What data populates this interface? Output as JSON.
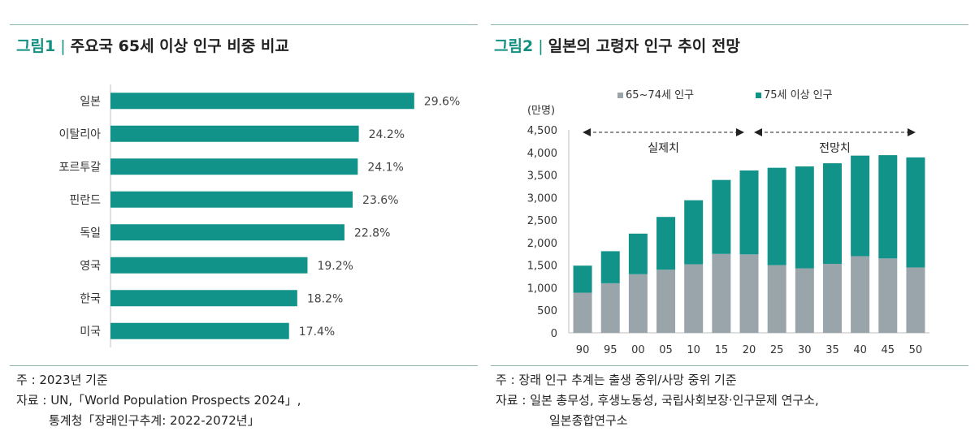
{
  "colors": {
    "teal": "#12938a",
    "gray": "#9aa4ab",
    "accent": "#129082"
  },
  "left": {
    "fig_label": "그림1",
    "sep": "|",
    "title": "주요국 65세 이상 인구 비중 비교",
    "notes": {
      "basis": "주 : 2023년 기준",
      "source1": "자료 : UN,「World Population Prospects 2024」,",
      "source2": "통계청「장래인구추계: 2022-2072년」"
    }
  },
  "right": {
    "fig_label": "그림2",
    "sep": "|",
    "title": "일본의 고령자 인구 추이 전망",
    "notes": {
      "basis": "주 : 장래 인구 추계는 출생 중위/사망 중위 기준",
      "source1": "자료 : 일본 총무성, 후생노동성, 국립사회보장·인구문제 연구소,",
      "source2": "일본종합연구소"
    }
  },
  "chart_data": [
    {
      "type": "bar",
      "orientation": "horizontal",
      "title": "주요국 65세 이상 인구 비중 비교",
      "categories": [
        "일본",
        "이탈리아",
        "포르투갈",
        "핀란드",
        "독일",
        "영국",
        "한국",
        "미국"
      ],
      "values": [
        29.6,
        24.2,
        24.1,
        23.6,
        22.8,
        19.2,
        18.2,
        17.4
      ],
      "value_labels": [
        "29.6%",
        "24.2%",
        "24.1%",
        "23.6%",
        "22.8%",
        "19.2%",
        "18.2%",
        "17.4%"
      ],
      "xlim": [
        0,
        35
      ],
      "grid": false
    },
    {
      "type": "bar",
      "stacked": true,
      "title": "일본의 고령자 인구 추이 전망",
      "ylabel": "(만명)",
      "categories": [
        "90",
        "95",
        "00",
        "05",
        "10",
        "15",
        "20",
        "25",
        "30",
        "35",
        "40",
        "45",
        "50"
      ],
      "series": [
        {
          "name": "65~74세 인구",
          "color": "#9aa4ab",
          "values": [
            890,
            1100,
            1300,
            1400,
            1520,
            1750,
            1740,
            1500,
            1430,
            1530,
            1700,
            1650,
            1450
          ]
        },
        {
          "name": "75세 이상 인구",
          "color": "#12938a",
          "values": [
            600,
            710,
            900,
            1170,
            1420,
            1640,
            1860,
            2160,
            2260,
            2230,
            2230,
            2290,
            2440
          ]
        }
      ],
      "ylim": [
        0,
        4500
      ],
      "yticks": [
        "0",
        "500",
        "1,000",
        "1,500",
        "2,000",
        "2,500",
        "3,000",
        "3,500",
        "4,000",
        "4,500"
      ],
      "legend_position": "top",
      "annotations": [
        {
          "text": "실제치",
          "from": "90",
          "to": "20"
        },
        {
          "text": "전망치",
          "from": "20",
          "to": "50"
        }
      ],
      "grid": false
    }
  ]
}
